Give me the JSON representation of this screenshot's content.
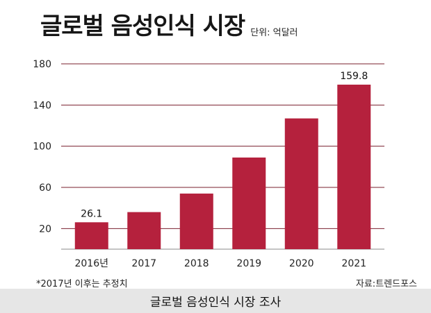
{
  "title": "글로벌 음성인식 시장",
  "unit": "단위: 억달러",
  "footnote": "*2017년 이후는 추정치",
  "source": "자료:트렌드포스",
  "caption": "글로벌 음성인식 시장 조사",
  "colors": {
    "bar": "#b5213d",
    "grid": "#7a1f2e",
    "text": "#161616"
  },
  "chart_data": {
    "type": "bar",
    "title": "글로벌 음성인식 시장",
    "categories": [
      "2016년",
      "2017",
      "2018",
      "2019",
      "2020",
      "2021"
    ],
    "values": [
      26.1,
      36,
      54,
      89,
      127,
      159.8
    ],
    "data_labels": [
      "26.1",
      "",
      "",
      "",
      "",
      "159.8"
    ],
    "yticks": [
      20,
      60,
      100,
      140,
      180
    ],
    "ylim": [
      0,
      180
    ],
    "grid": true,
    "legend": "none"
  }
}
